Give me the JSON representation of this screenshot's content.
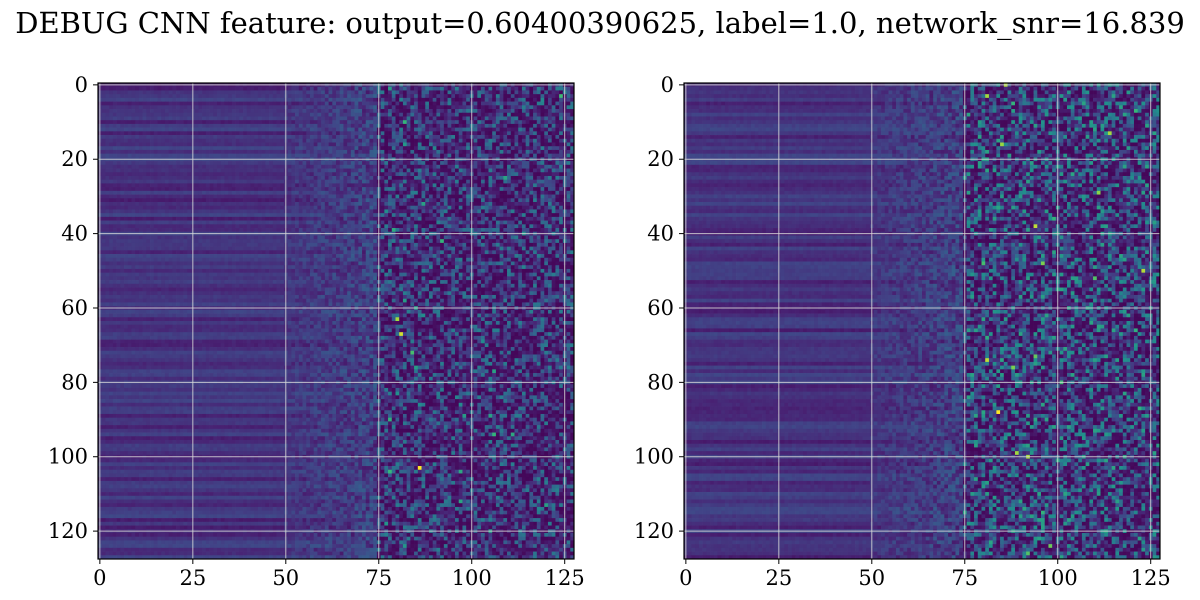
{
  "title": "DEBUG CNN feature: output=0.60400390625, label=1.0, network_snr=16.839",
  "chart_data": [
    {
      "type": "heatmap",
      "name": "",
      "colormap": "viridis",
      "grid": true,
      "x_range": [
        0,
        127
      ],
      "y_range": [
        0,
        127
      ],
      "y_inverted": true,
      "xticks": [
        0,
        25,
        50,
        75,
        100,
        125
      ],
      "yticks": [
        0,
        20,
        40,
        60,
        80,
        100,
        120
      ],
      "xtick_labels": [
        "0",
        "25",
        "50",
        "75",
        "100",
        "125"
      ],
      "ytick_labels": [
        "0",
        "20",
        "40",
        "60",
        "80",
        "100",
        "120"
      ],
      "hotspots": [
        {
          "x": 80,
          "y": 63,
          "value": 0.9
        },
        {
          "x": 81,
          "y": 67,
          "value": 0.95
        },
        {
          "x": 86,
          "y": 103,
          "value": 1.0
        },
        {
          "x": 82,
          "y": 16,
          "value": 0.65
        }
      ]
    },
    {
      "type": "heatmap",
      "name": "",
      "colormap": "viridis",
      "grid": true,
      "x_range": [
        0,
        127
      ],
      "y_range": [
        0,
        127
      ],
      "y_inverted": true,
      "xticks": [
        0,
        25,
        50,
        75,
        100,
        125
      ],
      "yticks": [
        0,
        20,
        40,
        60,
        80,
        100,
        120
      ],
      "xtick_labels": [
        "0",
        "25",
        "50",
        "75",
        "100",
        "125"
      ],
      "ytick_labels": [
        "0",
        "20",
        "40",
        "60",
        "80",
        "100",
        "120"
      ],
      "hotspots": [
        {
          "x": 81,
          "y": 3,
          "value": 0.9
        },
        {
          "x": 84,
          "y": 88,
          "value": 1.0
        },
        {
          "x": 96,
          "y": 48,
          "value": 0.85
        },
        {
          "x": 88,
          "y": 76,
          "value": 0.85
        },
        {
          "x": 121,
          "y": 7,
          "value": 0.75
        },
        {
          "x": 100,
          "y": 101,
          "value": 0.7
        }
      ]
    }
  ]
}
